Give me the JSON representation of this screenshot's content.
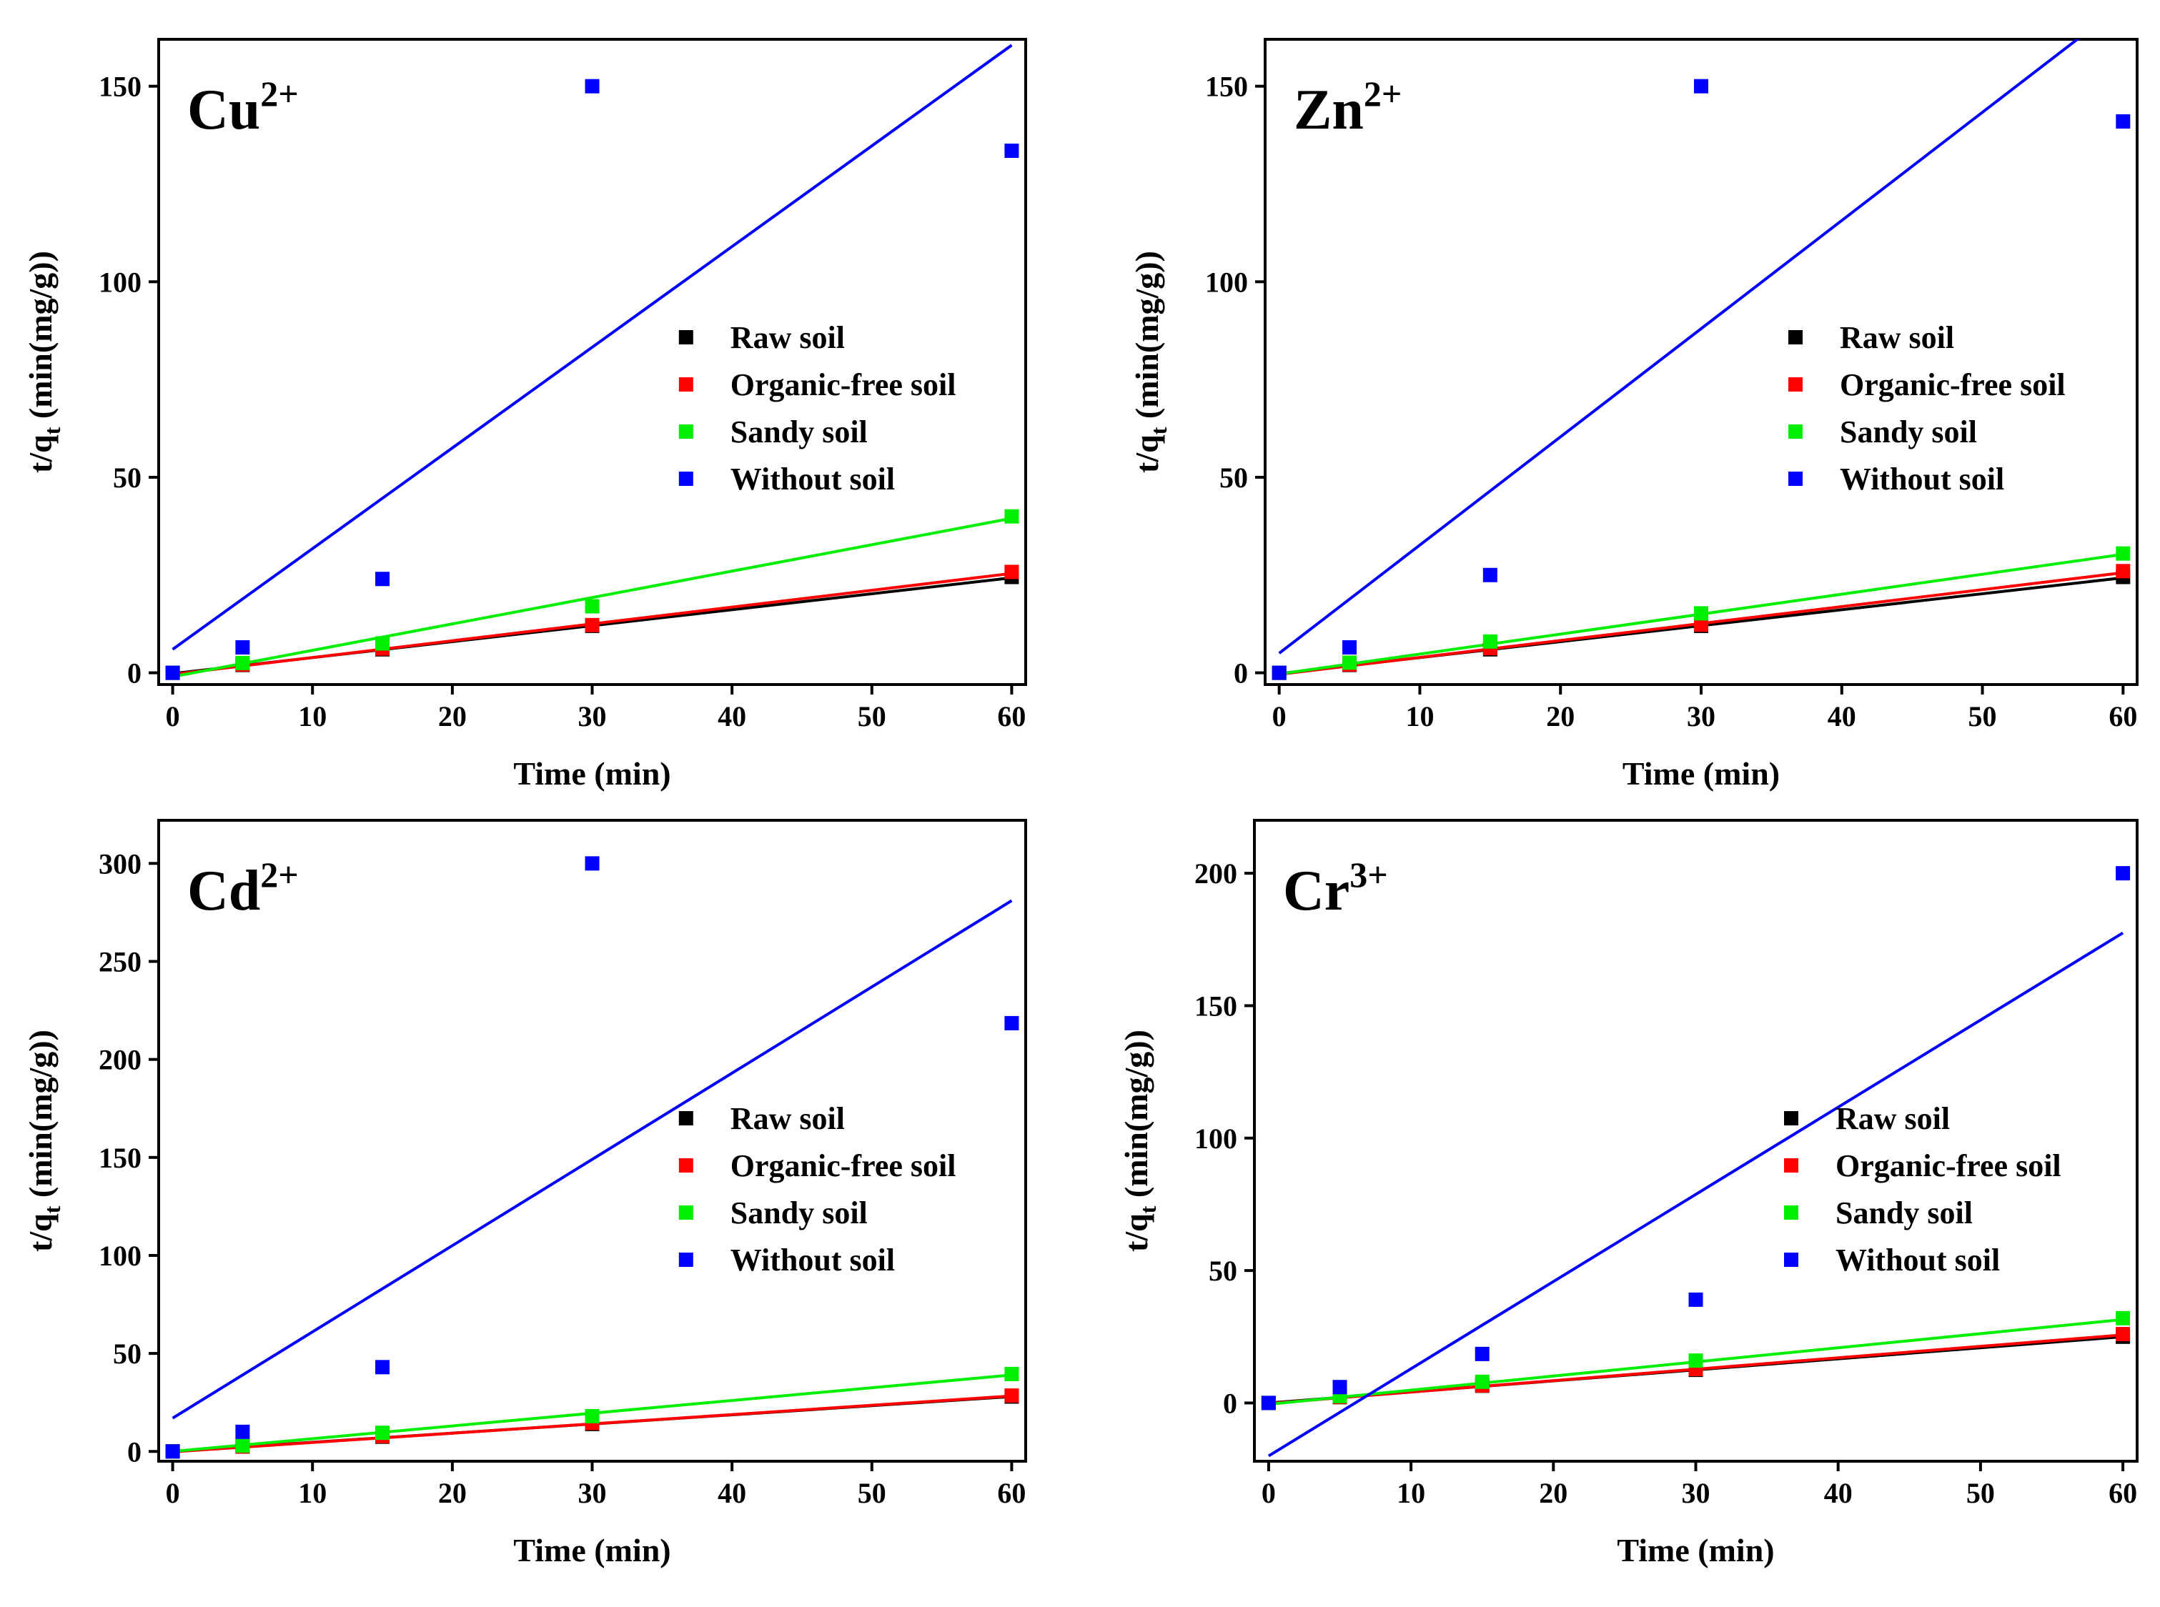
{
  "chart_data": [
    {
      "type": "scatter",
      "title": "Cu",
      "title_superscript": "2+",
      "xlabel": "Time (min)",
      "ylabel": "t/q",
      "ylabel_subscript": "t",
      "ylabel_unit": " (min(mg/g))",
      "xlim": [
        -1,
        61
      ],
      "ylim": [
        -3,
        162
      ],
      "xticks": [
        0,
        10,
        20,
        30,
        40,
        50,
        60
      ],
      "yticks": [
        0,
        50,
        100,
        150
      ],
      "x": [
        0,
        5,
        15,
        30,
        60
      ],
      "legend_position": "middle-right",
      "series": [
        {
          "name": "Raw soil",
          "color": "#000000",
          "points": [
            0,
            2.0,
            6.0,
            12.0,
            24.5
          ],
          "fit": [
            -0.2,
            24.3
          ]
        },
        {
          "name": "Organic-free soil",
          "color": "#ff0000",
          "points": [
            0,
            2.1,
            6.2,
            12.2,
            25.8
          ],
          "fit": [
            -0.4,
            25.4
          ]
        },
        {
          "name": "Sandy soil",
          "color": "#00ee00",
          "points": [
            0,
            2.5,
            7.5,
            17.0,
            40.0
          ],
          "fit": [
            -1.0,
            39.5
          ]
        },
        {
          "name": "Without soil",
          "color": "#0000ff",
          "points": [
            0,
            6.5,
            24.0,
            150.0,
            133.5
          ],
          "fit": [
            6.0,
            160.5
          ]
        }
      ]
    },
    {
      "type": "scatter",
      "title": "Zn",
      "title_superscript": "2+",
      "xlabel": "Time (min)",
      "ylabel": "t/q",
      "ylabel_subscript": "t",
      "ylabel_unit": " (min(mg/g))",
      "xlim": [
        -1,
        61
      ],
      "ylim": [
        -3,
        162
      ],
      "xticks": [
        0,
        10,
        20,
        30,
        40,
        50,
        60
      ],
      "yticks": [
        0,
        50,
        100,
        150
      ],
      "x": [
        0,
        5,
        15,
        30,
        60
      ],
      "legend_position": "middle-right",
      "series": [
        {
          "name": "Raw soil",
          "color": "#000000",
          "points": [
            0,
            2.0,
            6.0,
            12.0,
            24.5
          ],
          "fit": [
            -0.2,
            24.3
          ]
        },
        {
          "name": "Organic-free soil",
          "color": "#ff0000",
          "points": [
            0,
            2.1,
            6.3,
            12.3,
            26.0
          ],
          "fit": [
            -0.4,
            25.6
          ]
        },
        {
          "name": "Sandy soil",
          "color": "#00ee00",
          "points": [
            0,
            2.6,
            8.0,
            15.2,
            30.5
          ],
          "fit": [
            -0.3,
            30.3
          ]
        },
        {
          "name": "Without soil",
          "color": "#0000ff",
          "points": [
            0,
            6.5,
            25.0,
            150.0,
            141.0
          ],
          "fit": [
            5.0,
            171.0
          ]
        }
      ]
    },
    {
      "type": "scatter",
      "title": "Cd",
      "title_superscript": "2+",
      "xlabel": "Time (min)",
      "ylabel": "t/q",
      "ylabel_subscript": "t",
      "ylabel_unit": " (min(mg/g))",
      "xlim": [
        -1,
        61
      ],
      "ylim": [
        -5,
        322
      ],
      "xticks": [
        0,
        10,
        20,
        30,
        40,
        50,
        60
      ],
      "yticks": [
        0,
        50,
        100,
        150,
        200,
        250,
        300
      ],
      "x": [
        0,
        5,
        15,
        30,
        60
      ],
      "legend_position": "middle-right",
      "series": [
        {
          "name": "Raw soil",
          "color": "#000000",
          "points": [
            0,
            2.5,
            7.5,
            14.0,
            28.0
          ],
          "fit": [
            0.0,
            28.0
          ]
        },
        {
          "name": "Organic-free soil",
          "color": "#ff0000",
          "points": [
            0,
            2.6,
            7.8,
            14.5,
            28.5
          ],
          "fit": [
            -0.2,
            28.3
          ]
        },
        {
          "name": "Sandy soil",
          "color": "#00ee00",
          "points": [
            0,
            3.0,
            9.5,
            18.0,
            39.5
          ],
          "fit": [
            0.0,
            39.0
          ]
        },
        {
          "name": "Without soil",
          "color": "#0000ff",
          "points": [
            0,
            10.0,
            43.0,
            300.0,
            218.5
          ],
          "fit": [
            17.0,
            281.0
          ]
        }
      ]
    },
    {
      "type": "scatter",
      "title": "Cr",
      "title_superscript": "3+",
      "xlabel": "Time (min)",
      "ylabel": "t/q",
      "ylabel_subscript": "t",
      "ylabel_unit": " (min(mg/g))",
      "xlim": [
        -1,
        61
      ],
      "ylim": [
        -22,
        220
      ],
      "xticks": [
        0,
        10,
        20,
        30,
        40,
        50,
        60
      ],
      "yticks": [
        0,
        50,
        100,
        150,
        200
      ],
      "x": [
        0,
        5,
        15,
        30,
        60
      ],
      "legend_position": "middle-right",
      "series": [
        {
          "name": "Raw soil",
          "color": "#000000",
          "points": [
            0,
            2.2,
            6.5,
            12.5,
            25.0
          ],
          "fit": [
            0.0,
            25.0
          ]
        },
        {
          "name": "Organic-free soil",
          "color": "#ff0000",
          "points": [
            0,
            2.3,
            6.6,
            12.8,
            26.0
          ],
          "fit": [
            -0.2,
            25.7
          ]
        },
        {
          "name": "Sandy soil",
          "color": "#00ee00",
          "points": [
            0,
            2.6,
            8.0,
            16.0,
            32.0
          ],
          "fit": [
            -0.5,
            31.5
          ]
        },
        {
          "name": "Without soil",
          "color": "#0000ff",
          "points": [
            0,
            6.0,
            18.5,
            39.0,
            200.0
          ],
          "fit": [
            -20.0,
            177.5
          ]
        }
      ]
    }
  ]
}
